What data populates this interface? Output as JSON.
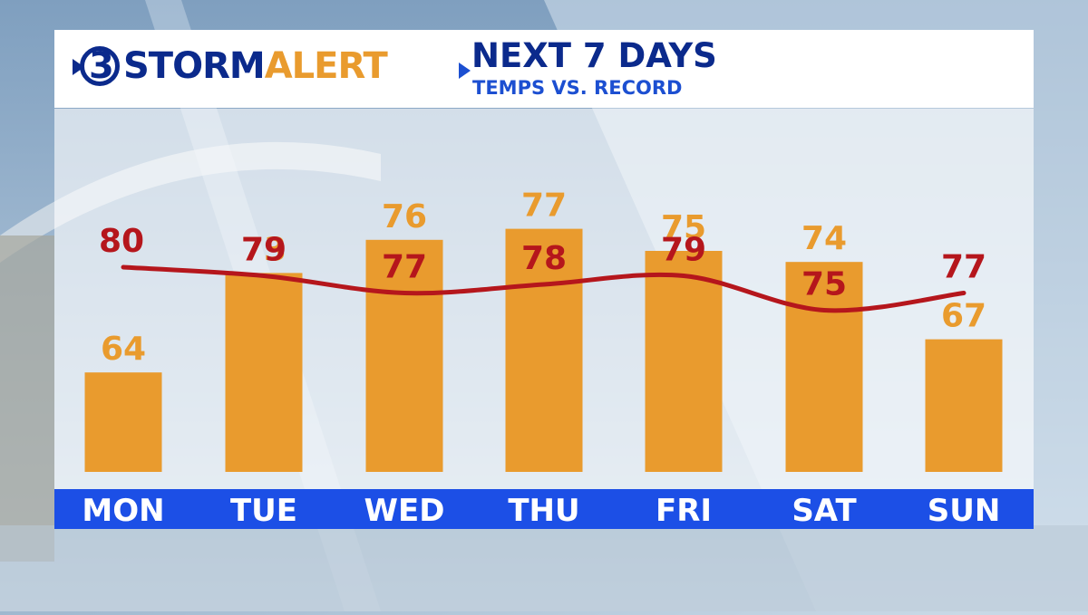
{
  "header": {
    "logo_number": "3",
    "logo_storm": "STORM",
    "logo_alert": "ALERT",
    "title": "NEXT 7 DAYS",
    "subtitle": "TEMPS VS. RECORD"
  },
  "colors": {
    "bar": "#e99b2e",
    "record_line": "#b5161c",
    "day_band": "#1c4fe6",
    "brand_blue": "#0b2a8c"
  },
  "chart_data": {
    "type": "bar",
    "categories": [
      "MON",
      "TUE",
      "WED",
      "THU",
      "FRI",
      "SAT",
      "SUN"
    ],
    "series": [
      {
        "values": [
          64,
          73,
          76,
          77,
          75,
          74,
          67
        ]
      },
      {
        "values": [
          80,
          79,
          77,
          78,
          79,
          75,
          77
        ]
      }
    ],
    "ylim": [
      55,
      85
    ],
    "grid": false
  }
}
